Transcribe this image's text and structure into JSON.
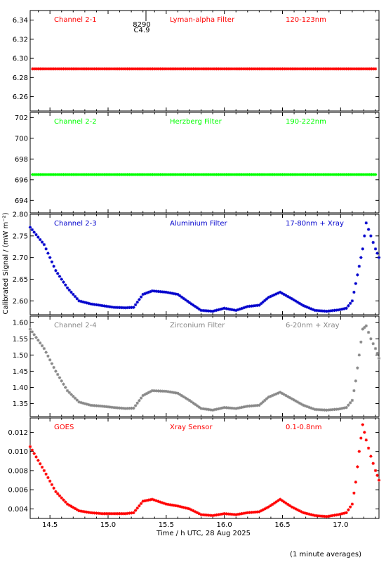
{
  "colors": {
    "red": "#ff0000",
    "green": "#00ff00",
    "blue": "#0000cc",
    "gray": "#888888",
    "axis": "#000000"
  },
  "y_axis_label": "Calibrated Signal / (mW m⁻²)",
  "x_axis_label": "Time / h UTC, 28 Aug 2025",
  "footnote": "(1 minute averages)",
  "flare_marker": {
    "line1": "8290",
    "line2": "C4.9"
  },
  "chart_data": [
    {
      "type": "scatter",
      "channel_label": "Channel 2-1",
      "filter_label": "Lyman-alpha Filter",
      "band_label": "120-123nm",
      "color_key": "red",
      "xlim": [
        14.33,
        17.33
      ],
      "ylim": [
        6.245,
        6.35
      ],
      "ytick_labels": [
        "6.26",
        "6.28",
        "6.30",
        "6.32",
        "6.34"
      ],
      "x": [
        14.35,
        14.6,
        14.9,
        15.2,
        15.5,
        15.8,
        16.1,
        16.4,
        16.7,
        17.0,
        17.3
      ],
      "y": [
        6.289,
        6.289,
        6.289,
        6.289,
        6.289,
        6.289,
        6.289,
        6.289,
        6.289,
        6.289,
        6.289
      ]
    },
    {
      "type": "scatter",
      "channel_label": "Channel 2-2",
      "filter_label": "Herzberg Filter",
      "band_label": "190-222nm",
      "color_key": "green",
      "xlim": [
        14.33,
        17.33
      ],
      "ylim": [
        692.8,
        702.5
      ],
      "ytick_labels": [
        "694",
        "696",
        "698",
        "700",
        "702"
      ],
      "x": [
        14.35,
        14.6,
        14.9,
        15.2,
        15.5,
        15.8,
        16.1,
        16.4,
        16.7,
        17.0,
        17.3
      ],
      "y": [
        696.5,
        696.5,
        696.5,
        696.5,
        696.5,
        696.5,
        696.5,
        696.5,
        696.5,
        696.5,
        696.5
      ]
    },
    {
      "type": "scatter",
      "channel_label": "Channel 2-3",
      "filter_label": "Aluminium Filter",
      "band_label": "17-80nm + Xray",
      "color_key": "blue",
      "xlim": [
        14.33,
        17.33
      ],
      "ylim": [
        2.568,
        2.8
      ],
      "ytick_labels": [
        "2.60",
        "2.65",
        "2.70",
        "2.75",
        "2.80"
      ],
      "x": [
        14.33,
        14.45,
        14.55,
        14.65,
        14.75,
        14.85,
        14.95,
        15.05,
        15.15,
        15.22,
        15.3,
        15.38,
        15.5,
        15.6,
        15.7,
        15.8,
        15.9,
        16.0,
        16.1,
        16.2,
        16.3,
        16.38,
        16.48,
        16.58,
        16.68,
        16.78,
        16.88,
        16.98,
        17.05,
        17.1,
        17.13,
        17.16,
        17.19,
        17.22,
        17.26,
        17.3,
        17.33
      ],
      "y": [
        2.77,
        2.73,
        2.67,
        2.63,
        2.6,
        2.593,
        2.589,
        2.585,
        2.584,
        2.585,
        2.615,
        2.623,
        2.62,
        2.615,
        2.596,
        2.578,
        2.576,
        2.583,
        2.578,
        2.587,
        2.59,
        2.608,
        2.62,
        2.605,
        2.589,
        2.578,
        2.576,
        2.579,
        2.583,
        2.6,
        2.64,
        2.68,
        2.72,
        2.78,
        2.75,
        2.72,
        2.7
      ]
    },
    {
      "type": "scatter",
      "channel_label": "Channel 2-4",
      "filter_label": "Zirconium Filter",
      "band_label": "6-20nm + Xray",
      "color_key": "gray",
      "xlim": [
        14.33,
        17.33
      ],
      "ylim": [
        1.31,
        1.62
      ],
      "ytick_labels": [
        "1.35",
        "1.40",
        "1.45",
        "1.50",
        "1.55",
        "1.60"
      ],
      "x": [
        14.33,
        14.45,
        14.55,
        14.65,
        14.75,
        14.85,
        14.95,
        15.05,
        15.15,
        15.22,
        15.3,
        15.38,
        15.5,
        15.6,
        15.7,
        15.8,
        15.9,
        16.0,
        16.1,
        16.2,
        16.3,
        16.38,
        16.48,
        16.58,
        16.68,
        16.78,
        16.88,
        16.98,
        17.05,
        17.1,
        17.13,
        17.16,
        17.19,
        17.22,
        17.26,
        17.3,
        17.33
      ],
      "y": [
        1.58,
        1.52,
        1.45,
        1.39,
        1.355,
        1.345,
        1.342,
        1.338,
        1.335,
        1.336,
        1.375,
        1.39,
        1.388,
        1.382,
        1.36,
        1.335,
        1.33,
        1.338,
        1.335,
        1.342,
        1.345,
        1.37,
        1.385,
        1.365,
        1.345,
        1.332,
        1.33,
        1.333,
        1.338,
        1.36,
        1.42,
        1.5,
        1.58,
        1.59,
        1.55,
        1.52,
        1.49
      ]
    },
    {
      "type": "scatter",
      "channel_label": "GOES",
      "filter_label": "Xray Sensor",
      "band_label": "0.1-0.8nm",
      "color_key": "red",
      "xlim": [
        14.33,
        17.33
      ],
      "ylim": [
        0.003,
        0.0135
      ],
      "ytick_labels": [
        "0.004",
        "0.006",
        "0.008",
        "0.010",
        "0.012"
      ],
      "xtick_labels": [
        "14.5",
        "15.0",
        "15.5",
        "16.0",
        "16.5",
        "17.0"
      ],
      "x": [
        14.33,
        14.45,
        14.55,
        14.65,
        14.75,
        14.85,
        14.95,
        15.05,
        15.15,
        15.22,
        15.3,
        15.38,
        15.5,
        15.6,
        15.7,
        15.8,
        15.9,
        16.0,
        16.1,
        16.2,
        16.3,
        16.38,
        16.48,
        16.58,
        16.68,
        16.78,
        16.88,
        16.98,
        17.05,
        17.1,
        17.13,
        17.16,
        17.19,
        17.22,
        17.26,
        17.3,
        17.33
      ],
      "y": [
        0.0105,
        0.008,
        0.0058,
        0.0045,
        0.0038,
        0.0036,
        0.0035,
        0.0035,
        0.0035,
        0.0036,
        0.0048,
        0.005,
        0.0045,
        0.0043,
        0.004,
        0.0034,
        0.0033,
        0.0035,
        0.0034,
        0.0036,
        0.0037,
        0.0042,
        0.005,
        0.0042,
        0.0036,
        0.0033,
        0.0032,
        0.0034,
        0.0036,
        0.0045,
        0.0068,
        0.01,
        0.0128,
        0.0112,
        0.0095,
        0.008,
        0.007
      ]
    }
  ]
}
